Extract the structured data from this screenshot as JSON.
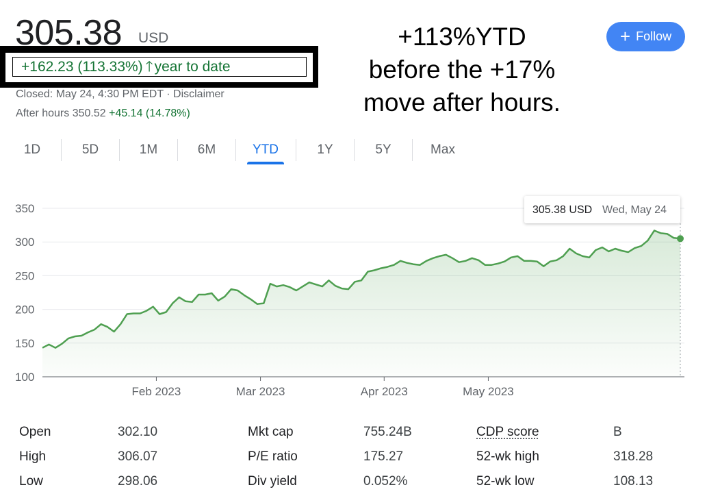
{
  "quote": {
    "price": "305.38",
    "currency": "USD",
    "change_text": "+162.23 (113.33%)",
    "change_arrow": "🡑",
    "change_period": "year to date",
    "closed_text": "Closed: May 24, 4:30 PM EDT · Disclaimer",
    "after_hours_label": "After hours 350.52",
    "after_hours_change": "+45.14 (14.78%)"
  },
  "annotation": {
    "lines": [
      "+113%YTD",
      "before the +17%",
      "move after hours."
    ]
  },
  "follow_button": {
    "icon": "plus-icon",
    "label": "Follow"
  },
  "tabs": [
    {
      "label": "1D"
    },
    {
      "label": "5D"
    },
    {
      "label": "1M"
    },
    {
      "label": "6M"
    },
    {
      "label": "YTD",
      "active": true
    },
    {
      "label": "1Y"
    },
    {
      "label": "5Y"
    },
    {
      "label": "Max"
    }
  ],
  "colors": {
    "positive": "#137333",
    "line": "#4e9f50",
    "accent": "#1a73e8",
    "follow_bg": "#4285f4"
  },
  "chart_data": {
    "type": "area",
    "y_ticks": [
      "350",
      "300",
      "250",
      "200",
      "150",
      "100"
    ],
    "ylim": [
      100,
      350
    ],
    "x_tick_labels": [
      "Feb 2023",
      "Mar 2023",
      "Apr 2023",
      "May 2023"
    ],
    "tooltip": {
      "value": "305.38 USD",
      "date": "Wed, May 24"
    },
    "series": [
      {
        "values": [
          143,
          148,
          143,
          149,
          157,
          160,
          161,
          166,
          170,
          178,
          174,
          167,
          178,
          193,
          194,
          194,
          198,
          204,
          193,
          196,
          209,
          218,
          212,
          211,
          222,
          222,
          224,
          213,
          219,
          230,
          228,
          221,
          215,
          208,
          209,
          238,
          234,
          236,
          233,
          228,
          234,
          240,
          237,
          234,
          243,
          235,
          231,
          230,
          241,
          243,
          256,
          258,
          261,
          263,
          266,
          272,
          269,
          267,
          266,
          272,
          276,
          279,
          281,
          276,
          270,
          272,
          276,
          273,
          266,
          266,
          268,
          271,
          277,
          279,
          272,
          272,
          271,
          264,
          271,
          273,
          279,
          290,
          283,
          279,
          277,
          288,
          292,
          286,
          290,
          287,
          285,
          291,
          294,
          302,
          317,
          313,
          312,
          306,
          305
        ]
      }
    ]
  },
  "stats": {
    "col1": [
      {
        "label": "Open",
        "value": "302.10"
      },
      {
        "label": "High",
        "value": "306.07"
      },
      {
        "label": "Low",
        "value": "298.06"
      }
    ],
    "col2": [
      {
        "label": "Mkt cap",
        "value": "755.24B"
      },
      {
        "label": "P/E ratio",
        "value": "175.27"
      },
      {
        "label": "Div yield",
        "value": "0.052%"
      }
    ],
    "col3": [
      {
        "label": "CDP score",
        "value": "B"
      },
      {
        "label": "52-wk high",
        "value": "318.28"
      },
      {
        "label": "52-wk low",
        "value": "108.13"
      }
    ]
  }
}
